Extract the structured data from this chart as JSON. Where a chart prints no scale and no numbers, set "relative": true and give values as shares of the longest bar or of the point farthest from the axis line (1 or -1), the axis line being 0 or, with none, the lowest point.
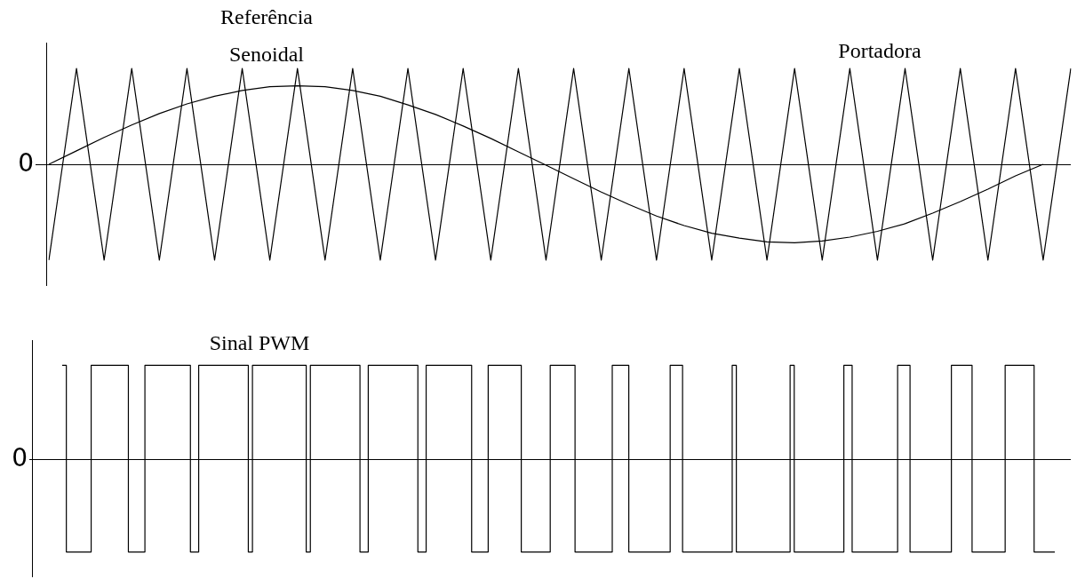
{
  "chart_data": [
    {
      "type": "line",
      "relative": true,
      "marker": "none",
      "categories": [
        null,
        null,
        null,
        null,
        null,
        null,
        null,
        null,
        null,
        null,
        null,
        null,
        null,
        null,
        null,
        null,
        null,
        null,
        null,
        null,
        null,
        null,
        null,
        null,
        null,
        null,
        null,
        null,
        null,
        null,
        null,
        null,
        null,
        null,
        null,
        null,
        null,
        null
      ],
      "series": [
        {
          "name": "Portadora",
          "color": "#000000",
          "values": [
            -1,
            1,
            -1,
            1,
            -1,
            1,
            -1,
            1,
            -1,
            1,
            -1,
            1,
            -1,
            1,
            -1,
            1,
            -1,
            1,
            -1,
            1,
            -1,
            1,
            -1,
            1,
            -1,
            1,
            -1,
            1,
            -1,
            1,
            -1,
            1,
            -1,
            1,
            -1,
            1,
            -1,
            1
          ]
        },
        {
          "name": "Referência Senoidal",
          "color": "#000000",
          "values": [
            0,
            0.14,
            0.28,
            0.41,
            0.53,
            0.63,
            0.71,
            0.77,
            0.81,
            0.82,
            0.81,
            0.77,
            0.71,
            0.62,
            0.52,
            0.4,
            0.27,
            0.13,
            -0.01,
            -0.15,
            -0.29,
            -0.42,
            -0.54,
            -0.64,
            -0.72,
            -0.77,
            -0.81,
            -0.82,
            -0.8,
            -0.76,
            -0.7,
            -0.62,
            -0.51,
            -0.39,
            -0.26,
            -0.12,
            0,
            null
          ]
        }
      ],
      "ref_lines": [
        {
          "axis": "y",
          "value": 0,
          "label": "0",
          "color": "#000000"
        }
      ]
    },
    {
      "type": "step",
      "relative": true,
      "marker": "none",
      "categories": [
        null,
        null,
        null,
        null,
        null,
        null,
        null,
        null,
        null,
        null,
        null,
        null,
        null,
        null,
        null,
        null,
        null,
        null,
        null,
        null,
        null,
        null,
        null,
        null,
        null,
        null,
        null,
        null,
        null,
        null,
        null,
        null,
        null,
        null,
        null,
        null,
        null,
        null,
        null,
        null,
        null,
        null,
        null,
        null,
        null,
        null,
        null,
        null,
        null,
        null,
        null,
        null,
        null,
        null,
        null,
        null,
        null,
        null,
        null,
        null,
        null,
        null,
        null,
        null,
        null,
        null,
        null,
        null,
        null,
        null,
        null,
        null,
        null,
        null,
        null,
        null,
        null,
        null,
        null,
        null,
        null,
        null,
        null,
        null,
        null,
        null,
        null,
        null,
        null,
        null,
        null,
        null,
        null,
        null,
        null,
        null,
        null,
        null,
        null,
        null,
        null,
        null,
        null,
        null,
        null,
        null,
        null,
        null,
        null,
        null,
        null,
        null,
        null,
        null,
        null,
        null,
        null,
        null,
        null,
        null,
        null,
        null,
        null,
        null,
        null,
        null,
        null,
        null,
        null,
        null,
        null,
        null,
        null,
        null,
        null,
        null,
        null,
        null,
        null,
        null,
        null,
        null,
        null,
        null,
        null,
        null,
        null,
        null,
        null,
        null,
        null,
        null,
        null,
        null,
        null,
        null,
        null,
        null,
        null,
        null,
        null,
        null,
        null,
        null,
        null,
        null,
        null,
        null,
        null,
        null,
        null,
        null,
        null,
        null,
        null,
        null,
        null,
        null,
        null,
        null,
        null,
        null,
        null,
        null,
        null,
        null,
        null,
        null,
        null,
        null,
        null,
        null,
        null,
        null,
        null,
        null,
        null,
        null,
        null,
        null,
        null,
        null,
        null,
        null,
        null,
        null,
        null,
        null,
        null,
        null,
        null,
        null,
        null,
        null,
        null,
        null,
        null,
        null,
        null,
        null,
        null,
        null,
        null,
        null,
        null,
        null,
        null,
        null,
        null,
        null,
        null,
        null,
        null,
        null,
        null,
        null,
        null,
        null,
        null,
        null,
        null
      ],
      "series": [
        {
          "name": "Sinal PWM",
          "color": "#000000",
          "values": [
            1,
            -1,
            -1,
            -1,
            -1,
            -1,
            -1,
            1,
            1,
            1,
            1,
            1,
            1,
            1,
            1,
            1,
            -1,
            -1,
            -1,
            -1,
            1,
            1,
            1,
            1,
            1,
            1,
            1,
            1,
            1,
            1,
            1,
            -1,
            -1,
            1,
            1,
            1,
            1,
            1,
            1,
            1,
            1,
            1,
            1,
            1,
            1,
            -1,
            1,
            1,
            1,
            1,
            1,
            1,
            1,
            1,
            1,
            1,
            1,
            1,
            1,
            -1,
            1,
            1,
            1,
            1,
            1,
            1,
            1,
            1,
            1,
            1,
            1,
            1,
            -1,
            -1,
            1,
            1,
            1,
            1,
            1,
            1,
            1,
            1,
            1,
            1,
            1,
            1,
            -1,
            -1,
            1,
            1,
            1,
            1,
            1,
            1,
            1,
            1,
            1,
            1,
            1,
            -1,
            -1,
            -1,
            -1,
            1,
            1,
            1,
            1,
            1,
            1,
            1,
            1,
            -1,
            -1,
            -1,
            -1,
            -1,
            -1,
            -1,
            1,
            1,
            1,
            1,
            1,
            1,
            -1,
            -1,
            -1,
            -1,
            -1,
            -1,
            -1,
            -1,
            -1,
            1,
            1,
            1,
            1,
            -1,
            -1,
            -1,
            -1,
            -1,
            -1,
            -1,
            -1,
            -1,
            -1,
            1,
            1,
            1,
            -1,
            -1,
            -1,
            -1,
            -1,
            -1,
            -1,
            -1,
            -1,
            -1,
            -1,
            -1,
            1,
            -1,
            -1,
            -1,
            -1,
            -1,
            -1,
            -1,
            -1,
            -1,
            -1,
            -1,
            -1,
            -1,
            1,
            -1,
            -1,
            -1,
            -1,
            -1,
            -1,
            -1,
            -1,
            -1,
            -1,
            -1,
            -1,
            1,
            1,
            -1,
            -1,
            -1,
            -1,
            -1,
            -1,
            -1,
            -1,
            -1,
            -1,
            -1,
            1,
            1,
            1,
            -1,
            -1,
            -1,
            -1,
            -1,
            -1,
            -1,
            -1,
            -1,
            -1,
            1,
            1,
            1,
            1,
            1,
            -1,
            -1,
            -1,
            -1,
            -1,
            -1,
            -1,
            -1,
            1,
            1,
            1,
            1,
            1,
            1,
            1,
            -1,
            -1,
            -1,
            -1,
            -1,
            -1
          ]
        }
      ],
      "ref_lines": [
        {
          "axis": "y",
          "value": 0,
          "label": "0",
          "color": "#000000"
        }
      ]
    }
  ]
}
